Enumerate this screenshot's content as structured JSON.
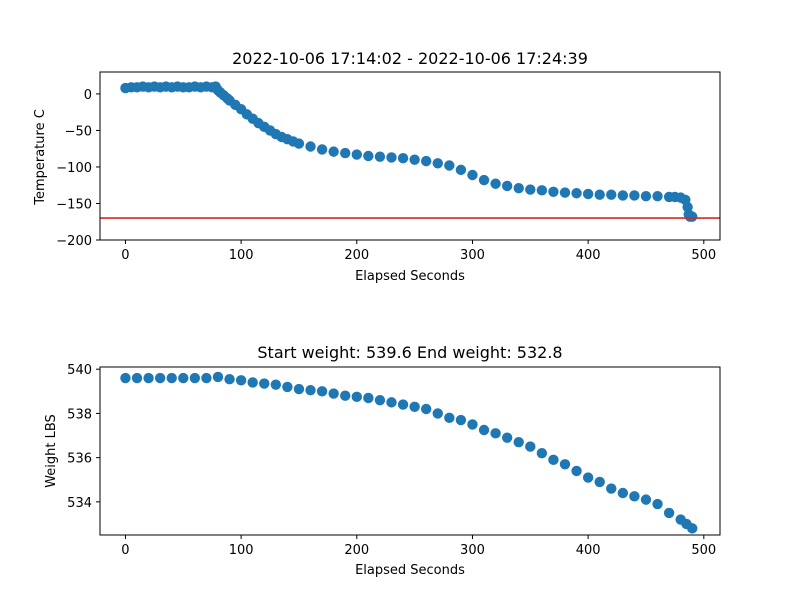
{
  "colors": {
    "points": "#1f77b4",
    "threshold_line": "#d62728",
    "axes": "#000000"
  },
  "chart_data": [
    {
      "type": "scatter",
      "title": "2022-10-06 17:14:02 - 2022-10-06 17:24:39",
      "xlabel": "Elapsed Seconds",
      "ylabel": "Temperature C",
      "xlim": [
        -22,
        514
      ],
      "ylim": [
        -200,
        30
      ],
      "xticks": [
        0,
        100,
        200,
        300,
        400,
        500
      ],
      "xtick_labels": [
        "0",
        "100",
        "200",
        "300",
        "400",
        "500"
      ],
      "yticks": [
        0,
        -50,
        -100,
        -150,
        -200
      ],
      "ytick_labels": [
        "0",
        "−50",
        "−100",
        "−150",
        "−200"
      ],
      "grid": false,
      "hline": {
        "y": -170,
        "color": "red"
      },
      "series": [
        {
          "x": [
            0,
            5,
            10,
            15,
            20,
            25,
            30,
            35,
            40,
            45,
            50,
            55,
            60,
            65,
            70,
            75,
            78,
            80,
            82,
            85,
            88,
            90,
            95,
            100,
            105,
            110,
            115,
            120,
            125,
            130,
            135,
            140,
            145,
            150,
            160,
            170,
            180,
            190,
            200,
            210,
            220,
            230,
            240,
            250,
            260,
            270,
            280,
            290,
            300,
            310,
            320,
            330,
            340,
            350,
            360,
            370,
            380,
            390,
            400,
            410,
            420,
            430,
            440,
            450,
            460,
            470,
            475,
            480,
            484,
            486,
            487,
            488,
            490
          ],
          "y": [
            8,
            9,
            9,
            10,
            9,
            10,
            9,
            10,
            9,
            10,
            9,
            9,
            10,
            9,
            10,
            9,
            10,
            5,
            2,
            -2,
            -6,
            -9,
            -15,
            -21,
            -28,
            -34,
            -40,
            -45,
            -50,
            -55,
            -59,
            -62,
            -65,
            -68,
            -72,
            -76,
            -79,
            -81,
            -83,
            -85,
            -86,
            -87,
            -88,
            -90,
            -92,
            -95,
            -98,
            -104,
            -111,
            -118,
            -123,
            -126,
            -129,
            -131,
            -132,
            -134,
            -135,
            -136,
            -137,
            -138,
            -138,
            -139,
            -139,
            -140,
            -140,
            -141,
            -141,
            -142,
            -145,
            -155,
            -165,
            -168,
            -168
          ]
        }
      ]
    },
    {
      "type": "scatter",
      "title": "Start weight: 539.6 End weight: 532.8",
      "xlabel": "Elapsed Seconds",
      "ylabel": "Weight LBS",
      "xlim": [
        -22,
        514
      ],
      "ylim": [
        532.5,
        540.1
      ],
      "xticks": [
        0,
        100,
        200,
        300,
        400,
        500
      ],
      "xtick_labels": [
        "0",
        "100",
        "200",
        "300",
        "400",
        "500"
      ],
      "yticks": [
        534,
        536,
        538,
        540
      ],
      "ytick_labels": [
        "534",
        "536",
        "538",
        "540"
      ],
      "grid": false,
      "series": [
        {
          "x": [
            0,
            10,
            20,
            30,
            40,
            50,
            60,
            70,
            80,
            90,
            100,
            110,
            120,
            130,
            140,
            150,
            160,
            170,
            180,
            190,
            200,
            210,
            220,
            230,
            240,
            250,
            260,
            270,
            280,
            290,
            300,
            310,
            320,
            330,
            340,
            350,
            360,
            370,
            380,
            390,
            400,
            410,
            420,
            430,
            440,
            450,
            460,
            470,
            480,
            485,
            490
          ],
          "y": [
            539.6,
            539.6,
            539.6,
            539.6,
            539.6,
            539.6,
            539.6,
            539.6,
            539.65,
            539.55,
            539.5,
            539.4,
            539.35,
            539.3,
            539.2,
            539.1,
            539.05,
            539.0,
            538.9,
            538.8,
            538.75,
            538.7,
            538.6,
            538.5,
            538.4,
            538.3,
            538.2,
            538.0,
            537.8,
            537.7,
            537.5,
            537.25,
            537.1,
            536.9,
            536.7,
            536.5,
            536.2,
            535.9,
            535.7,
            535.4,
            535.1,
            534.9,
            534.6,
            534.4,
            534.25,
            534.1,
            533.9,
            533.5,
            533.2,
            533.0,
            532.8
          ]
        }
      ]
    }
  ]
}
